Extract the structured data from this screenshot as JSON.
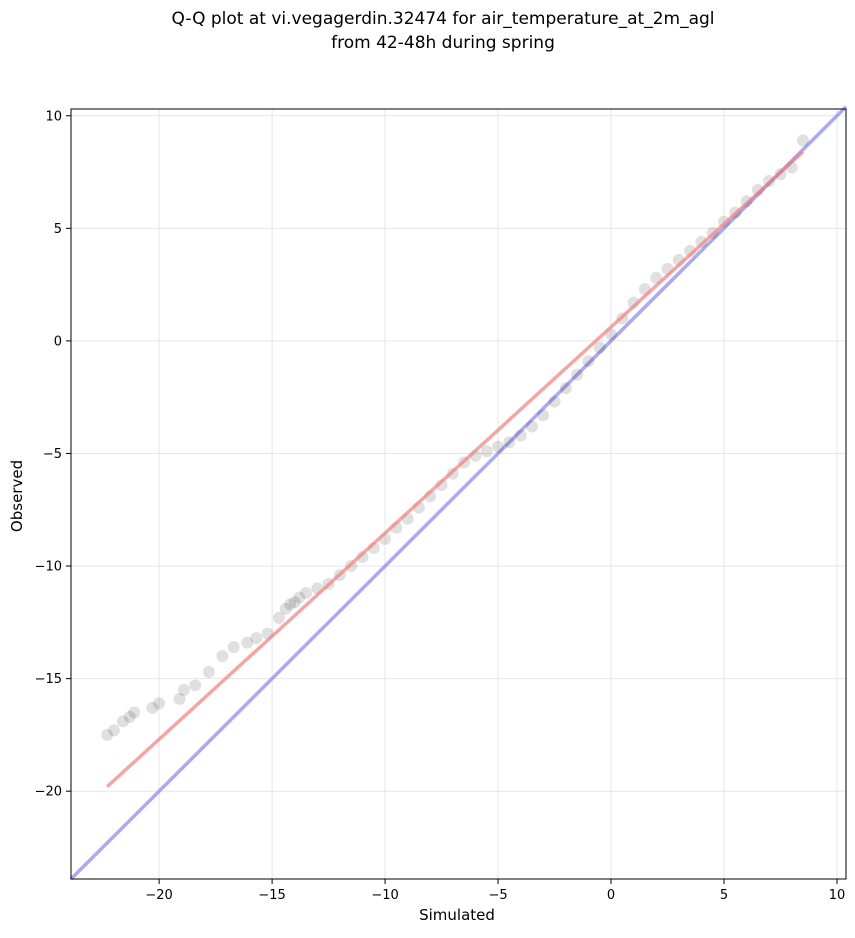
{
  "chart_data": {
    "type": "scatter",
    "title": "Q-Q plot at vi.vegagerdin.32474 for air_temperature_at_2m_agl",
    "subtitle": "from 42-48h during spring",
    "xlabel": "Simulated",
    "ylabel": "Observed",
    "xlim": [
      -23.9,
      10.4
    ],
    "ylim": [
      -23.9,
      10.3
    ],
    "xticks": [
      -20,
      -15,
      -10,
      -5,
      0,
      5,
      10
    ],
    "yticks": [
      -20,
      -15,
      -10,
      -5,
      0,
      5,
      10
    ],
    "xtick_labels": [
      "−20",
      "−15",
      "−10",
      "−5",
      "0",
      "5",
      "10"
    ],
    "ytick_labels": [
      "−20",
      "−15",
      "−10",
      "−5",
      "0",
      "5",
      "10"
    ],
    "grid": true,
    "series": [
      {
        "kind": "quantile points",
        "color": "#000000",
        "x": [
          -22.3,
          -22.0,
          -21.6,
          -21.3,
          -21.1,
          -20.3,
          -20.0,
          -19.1,
          -18.9,
          -18.4,
          -17.8,
          -17.2,
          -16.7,
          -16.1,
          -15.7,
          -15.2,
          -14.7,
          -14.4,
          -14.2,
          -14.0,
          -13.8,
          -13.5,
          -13.0,
          -12.5,
          -12.0,
          -11.5,
          -11.0,
          -10.5,
          -10.0,
          -9.5,
          -9.0,
          -8.5,
          -8.0,
          -7.5,
          -7.0,
          -6.5,
          -6.0,
          -5.5,
          -5.0,
          -4.5,
          -4.0,
          -3.5,
          -3.0,
          -2.5,
          -2.0,
          -1.5,
          -1.0,
          -0.5,
          0.0,
          0.5,
          1.0,
          1.5,
          2.0,
          2.5,
          3.0,
          3.5,
          4.0,
          4.5,
          5.0,
          5.5,
          6.0,
          6.5,
          7.0,
          7.5,
          8.0,
          8.5
        ],
        "y": [
          -17.5,
          -17.3,
          -16.9,
          -16.7,
          -16.5,
          -16.3,
          -16.1,
          -15.9,
          -15.5,
          -15.3,
          -14.7,
          -14.0,
          -13.6,
          -13.4,
          -13.2,
          -13.0,
          -12.3,
          -11.9,
          -11.7,
          -11.6,
          -11.4,
          -11.2,
          -11.0,
          -10.8,
          -10.4,
          -10.0,
          -9.6,
          -9.2,
          -8.8,
          -8.3,
          -7.9,
          -7.4,
          -6.9,
          -6.4,
          -5.9,
          -5.4,
          -5.1,
          -4.9,
          -4.7,
          -4.5,
          -4.2,
          -3.8,
          -3.3,
          -2.7,
          -2.1,
          -1.5,
          -0.9,
          -0.3,
          0.3,
          1.0,
          1.7,
          2.3,
          2.8,
          3.2,
          3.6,
          4.0,
          4.4,
          4.8,
          5.3,
          5.7,
          6.2,
          6.7,
          7.1,
          7.4,
          7.7,
          8.9
        ]
      },
      {
        "kind": "fit line",
        "color": "#f08080",
        "x": [
          -22.3,
          8.5
        ],
        "y": [
          -19.8,
          8.4
        ]
      },
      {
        "kind": "1:1 reference line",
        "color": "#7b7bf0",
        "x": [
          -23.9,
          10.4
        ],
        "y": [
          -23.9,
          10.4
        ]
      }
    ]
  }
}
